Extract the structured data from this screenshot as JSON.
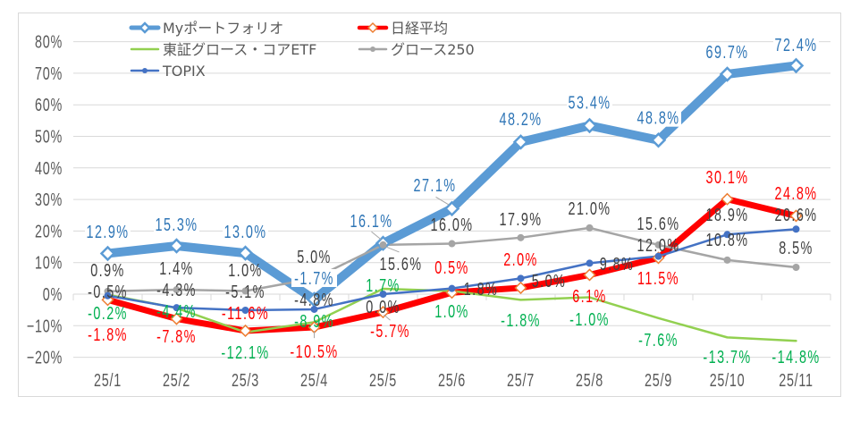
{
  "chart_data": {
    "type": "line",
    "title": "",
    "xlabel": "",
    "ylabel": "",
    "categories": [
      "25/1",
      "25/2",
      "25/3",
      "25/4",
      "25/5",
      "25/6",
      "25/7",
      "25/8",
      "25/9",
      "25/10",
      "25/11"
    ],
    "ylim": [
      -20,
      80
    ],
    "yticks": [
      -20,
      -10,
      0,
      10,
      20,
      30,
      40,
      50,
      60,
      70,
      80
    ],
    "ytick_labels": [
      "−20%",
      "−10%",
      "0%",
      "10%",
      "20%",
      "30%",
      "40%",
      "50%",
      "60%",
      "70%",
      "80%"
    ],
    "grid": true,
    "legend_position": "top-left",
    "data_labels": true,
    "series": [
      {
        "name": "Myポートフォリオ",
        "color": "#5B9BD5",
        "label_color": "#2E75B6",
        "marker": "diamond",
        "marker_color": "#5B9BD5",
        "values": [
          12.9,
          15.3,
          13.0,
          -1.7,
          16.1,
          27.1,
          48.2,
          53.4,
          48.8,
          69.7,
          72.4
        ],
        "labels": [
          "12.9%",
          "15.3%",
          "13.0%",
          "-1.7%",
          "16.1%",
          "27.1%",
          "48.2%",
          "53.4%",
          "48.8%",
          "69.7%",
          "72.4%"
        ]
      },
      {
        "name": "日経平均",
        "color": "#FF0000",
        "label_color": "#FF0000",
        "marker": "diamond",
        "marker_color": "#ED7D31",
        "values": [
          -1.8,
          -7.8,
          -11.6,
          -10.5,
          -5.7,
          0.5,
          2.0,
          6.1,
          11.5,
          30.1,
          24.8
        ],
        "labels": [
          "-1.8%",
          "-7.8%",
          "-11.6%",
          "-10.5%",
          "-5.7%",
          "0.5%",
          "2.0%",
          "6.1%",
          "11.5%",
          "30.1%",
          "24.8%"
        ]
      },
      {
        "name": "東証グロース・コアETF",
        "color": "#92D050",
        "label_color": "#00B050",
        "marker": "none",
        "marker_color": "#92D050",
        "values": [
          -0.2,
          -4.4,
          -12.1,
          -8.9,
          1.7,
          1.0,
          -1.8,
          -1.0,
          -7.6,
          -13.7,
          -14.8
        ],
        "labels": [
          "-0.2%",
          "-4.4%",
          "-12.1%",
          "-8.9%",
          "1.7%",
          "1.0%",
          "-1.8%",
          "-1.0%",
          "-7.6%",
          "-13.7%",
          "-14.8%"
        ]
      },
      {
        "name": "グロース250",
        "color": "#A5A5A5",
        "label_color": "#404040",
        "marker": "circle",
        "marker_color": "#A5A5A5",
        "values": [
          0.9,
          1.4,
          1.0,
          5.0,
          15.6,
          16.0,
          17.9,
          21.0,
          15.6,
          10.8,
          8.5
        ],
        "labels": [
          "0.9%",
          "1.4%",
          "1.0%",
          "5.0%",
          "15.6%",
          "16.0%",
          "17.9%",
          "21.0%",
          "15.6%",
          "10.8%",
          "8.5%"
        ]
      },
      {
        "name": "TOPIX",
        "color": "#4472C4",
        "label_color": "#404040",
        "marker": "circle",
        "marker_color": "#4472C4",
        "values": [
          -0.5,
          -4.3,
          -5.1,
          -4.8,
          0.0,
          1.8,
          5.0,
          9.8,
          12.0,
          18.9,
          20.6
        ],
        "labels": [
          "-0.5%",
          "-4.3%",
          "-5.1%",
          "-4.8%",
          "0.0%",
          "1.8%",
          "5.0%",
          "9.8%",
          "12.0%",
          "18.9%",
          "20.6%"
        ]
      }
    ]
  }
}
